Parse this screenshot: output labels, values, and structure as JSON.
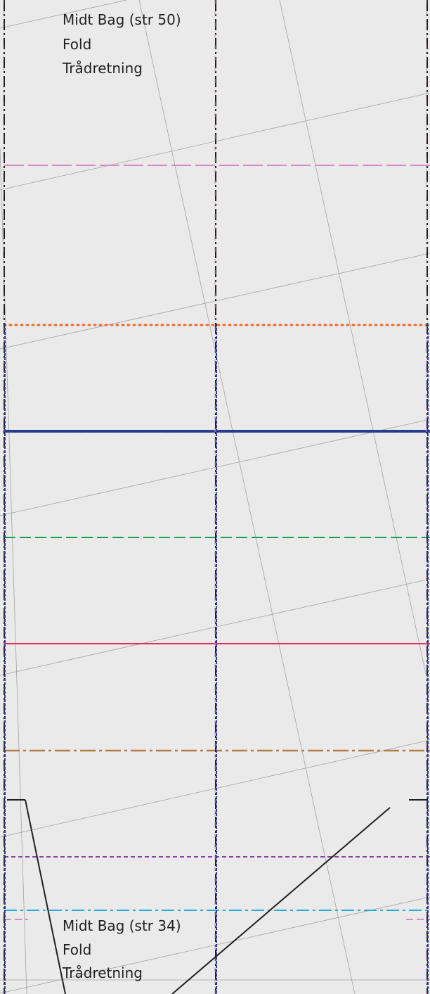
{
  "top_label": {
    "line1": "Midt Bag (str 50)",
    "line2": "Fold",
    "line3": "Trådretning"
  },
  "bottom_label": {
    "line1": "Midt Bag (str 34)",
    "line2": "Fold",
    "line3": "Trådretning"
  },
  "colors": {
    "background": "#e9eae9",
    "grid": "#9a9a9a",
    "outline": "#231f20",
    "size_lines": [
      "#d98ac0",
      "#ee6a2b",
      "#283a8e",
      "#12a04a",
      "#e22d5e",
      "#b47d45",
      "#8a44a0",
      "#27aae1"
    ]
  }
}
